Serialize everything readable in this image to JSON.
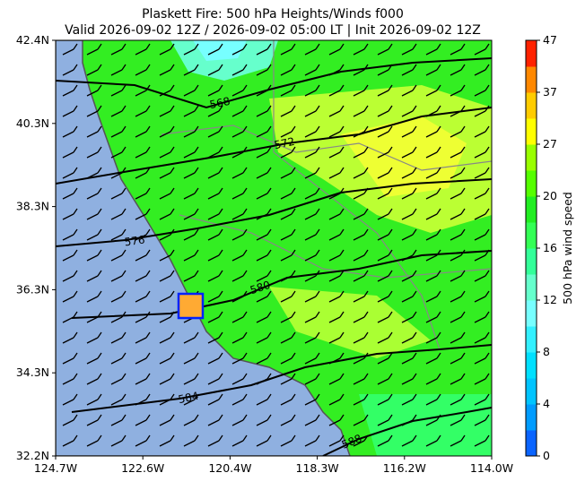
{
  "header": {
    "title": [
      "Plaskett Fire: 500 hPa Heights/Winds f000",
      "Valid 2026-09-02 12Z / 2026-09-02 05:00 LT | Init 2026-09-02 12Z"
    ]
  },
  "axes": {
    "x_labels": [
      "124.7W",
      "122.6W",
      "120.4W",
      "118.3W",
      "116.2W",
      "114.0W"
    ],
    "y_labels": [
      "42.4N",
      "40.3N",
      "38.3N",
      "36.3N",
      "34.3N",
      "32.2N"
    ]
  },
  "contours": [
    "568",
    "572",
    "576",
    "580",
    "584",
    "588"
  ],
  "colorbar": {
    "label": "500 hPa wind speed",
    "ticks": [
      0,
      4,
      8,
      12,
      16,
      20,
      27,
      37,
      47
    ]
  }
}
